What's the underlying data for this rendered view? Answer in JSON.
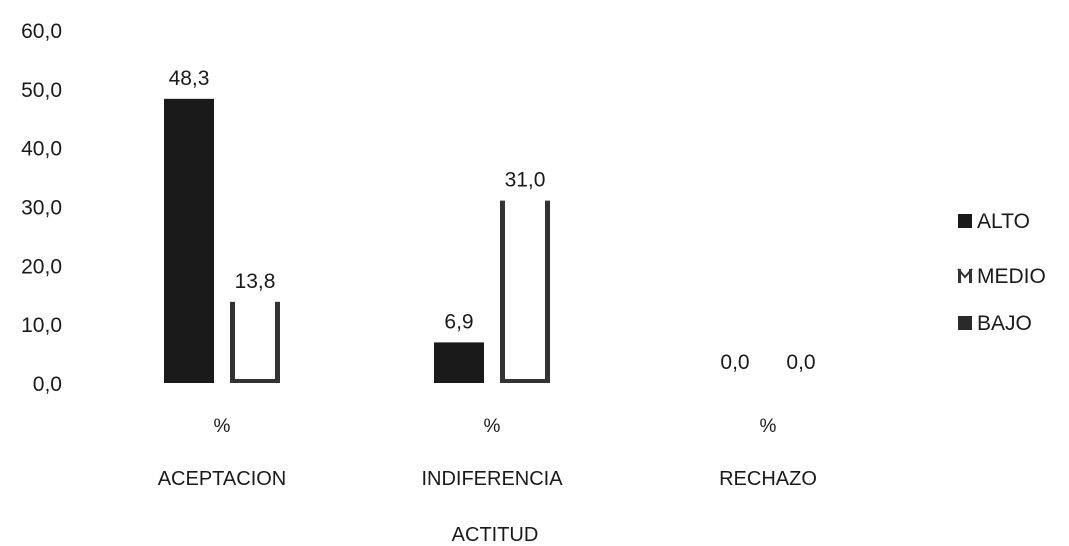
{
  "chart_data": {
    "type": "bar",
    "title": "",
    "xlabel": "ACTITUD",
    "ylabel": "",
    "ylim": [
      0,
      60
    ],
    "yticks": [
      "0,0",
      "10,0",
      "20,0",
      "30,0",
      "40,0",
      "50,0",
      "60,0"
    ],
    "categories": [
      "ACEPTACION",
      "INDIFERENCIA",
      "RECHAZO"
    ],
    "category_unit": "%",
    "series": [
      {
        "name": "ALTO",
        "values": [
          48.3,
          6.9,
          0.0
        ],
        "labels": [
          "48,3",
          "6,9",
          "0,0"
        ],
        "color": "#1a1a1a"
      },
      {
        "name": "MEDIO",
        "values": [
          13.8,
          31.0,
          0.0
        ],
        "labels": [
          "13,8",
          "31,0",
          "0,0"
        ],
        "color": "#ffffff"
      },
      {
        "name": "BAJO",
        "values": [
          0,
          0,
          0
        ],
        "labels": [
          "",
          "",
          ""
        ],
        "color": "#2a2a2a"
      }
    ],
    "legend_position": "right",
    "grid": false
  }
}
